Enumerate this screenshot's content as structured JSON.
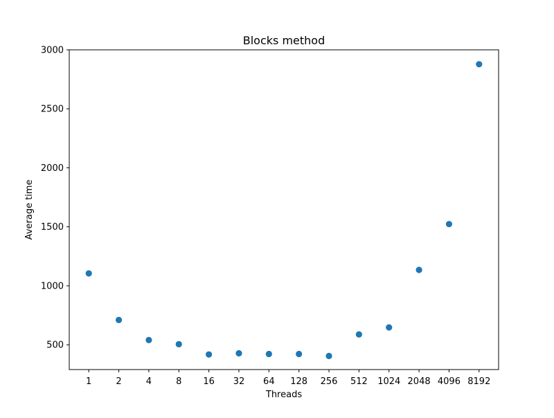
{
  "chart_data": {
    "type": "scatter",
    "title": "Blocks method",
    "xlabel": "Threads",
    "ylabel": "Average time",
    "categories": [
      "1",
      "2",
      "4",
      "8",
      "16",
      "32",
      "64",
      "128",
      "256",
      "512",
      "1024",
      "2048",
      "4096",
      "8192"
    ],
    "values": [
      1105,
      710,
      540,
      505,
      418,
      428,
      422,
      422,
      405,
      588,
      647,
      1135,
      1523,
      2878
    ],
    "ylim": [
      290,
      3000
    ],
    "yticks": [
      500,
      1000,
      1500,
      2000,
      2500,
      3000
    ],
    "grid": false,
    "marker_color": "#1f77b4"
  }
}
